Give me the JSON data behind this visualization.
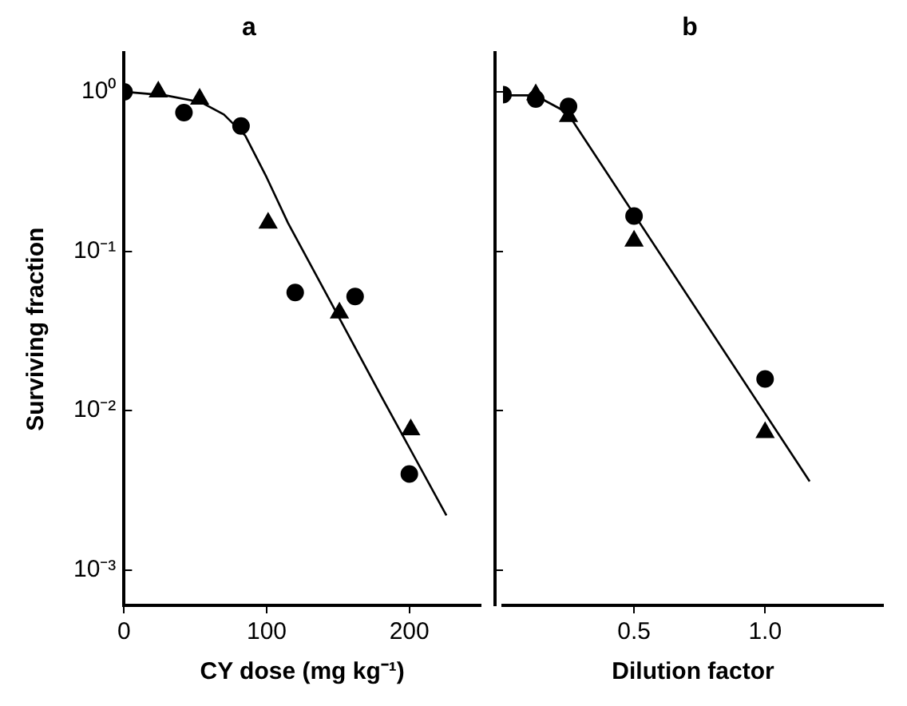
{
  "chart_data": [
    {
      "type": "scatter",
      "title": "a",
      "xlabel": "CY dose (mg kg⁻¹)",
      "ylabel": "Surviving fraction",
      "log": "y",
      "grid": false,
      "legend": false,
      "xlim": [
        0,
        250
      ],
      "xticks": [
        0,
        100,
        200
      ],
      "ylim": [
        0.0006,
        1.75
      ],
      "yticks": [
        {
          "value": 1,
          "label": "10⁰"
        },
        {
          "value": 0.1,
          "label": "10⁻¹"
        },
        {
          "value": 0.01,
          "label": "10⁻²"
        },
        {
          "value": 0.001,
          "label": "10⁻³"
        }
      ],
      "series": [
        {
          "type": "scatter",
          "marker": "circle",
          "color": "#000000",
          "x": [
            0,
            42,
            82,
            120,
            162,
            200
          ],
          "values": [
            1.0,
            0.74,
            0.61,
            0.055,
            0.052,
            0.004
          ]
        },
        {
          "type": "scatter",
          "marker": "triangle",
          "color": "#000000",
          "x": [
            24,
            53,
            101,
            151,
            201
          ],
          "values": [
            1.0,
            0.9,
            0.15,
            0.041,
            0.0076
          ]
        },
        {
          "type": "line",
          "marker": "none",
          "color": "#000000",
          "x": [
            0,
            29,
            54,
            70,
            85,
            100,
            115,
            146,
            181,
            226
          ],
          "values": [
            1.0,
            0.95,
            0.86,
            0.72,
            0.53,
            0.29,
            0.15,
            0.046,
            0.012,
            0.0022
          ]
        }
      ]
    },
    {
      "type": "scatter",
      "title": "b",
      "xlabel": "Dilution factor",
      "log": "y",
      "grid": false,
      "legend": false,
      "tick_labels": "x",
      "xlim": [
        0,
        1.45
      ],
      "xticks": [
        0.5,
        {
          "value": 1,
          "label": "1.0"
        }
      ],
      "ylim": [
        0.0006,
        1.75
      ],
      "yticks": [
        {
          "value": 1,
          "label": null
        },
        {
          "value": 0.1,
          "label": null
        },
        {
          "value": 0.01,
          "label": null
        },
        {
          "value": 0.001,
          "label": null
        }
      ],
      "series": [
        {
          "type": "scatter",
          "marker": "circle",
          "color": "#000000",
          "x": [
            0,
            0.125,
            0.25,
            0.5,
            1.0
          ],
          "values": [
            0.96,
            0.9,
            0.81,
            0.166,
            0.0158
          ]
        },
        {
          "type": "scatter",
          "marker": "triangle",
          "color": "#000000",
          "x": [
            0.125,
            0.25,
            0.5,
            1.0
          ],
          "values": [
            0.96,
            0.7,
            0.116,
            0.0073
          ]
        },
        {
          "type": "line",
          "marker": "none",
          "color": "#000000",
          "x": [
            0,
            0.1,
            0.16,
            0.245,
            1.17
          ],
          "values": [
            0.95,
            0.95,
            0.88,
            0.74,
            0.0036
          ]
        }
      ]
    }
  ]
}
